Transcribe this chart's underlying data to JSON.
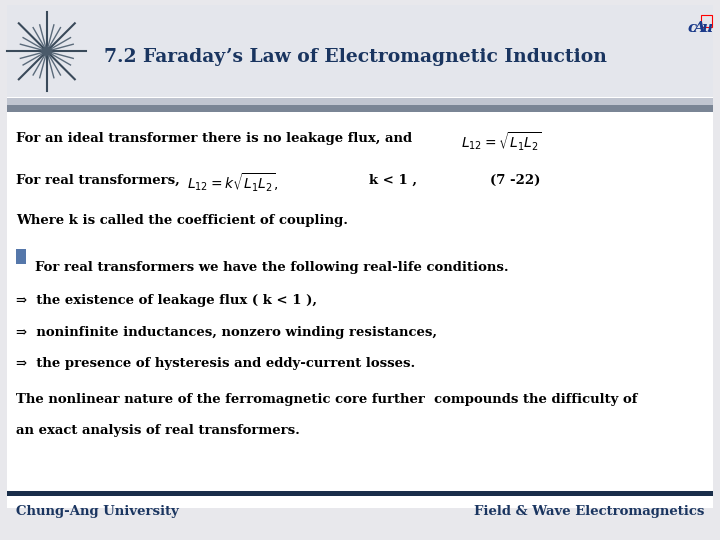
{
  "title": "7.2 Faraday’s Law of Electromagnetic Induction",
  "title_color": "#1a3560",
  "title_fontsize": 13.5,
  "bg_color": "#e8e8ec",
  "content_bg": "#ffffff",
  "header_bar_color1": "#b8bfcc",
  "header_bar_color2": "#7a8595",
  "footer_bar_color": "#1a2e4a",
  "footer_left": "Chung-Ang University",
  "footer_right": "Field & Wave Electromagnetics",
  "footer_color": "#1a3560",
  "footer_fontsize": 9.5,
  "line1": "For an ideal transformer there is no leakage flux, and",
  "line2": "For real transformers,",
  "line2b": "k < 1 ,",
  "line2c": "(7 -22)",
  "line3": "Where k is called the coefficient of coupling.",
  "line4": "For real transformers we have the following real-life conditions.",
  "line5": "⇒  the existence of leakage flux ( k < 1 ),",
  "line6": "⇒  noninfinite inductances, nonzero winding resistances,",
  "line7": "⇒  the presence of hysteresis and eddy-current losses.",
  "line8": "The nonlinear nature of the ferromagnetic core further  compounds the difficulty of",
  "line9": "an exact analysis of real transformers.",
  "text_color": "#000000",
  "bold_fontsize": 9.5
}
